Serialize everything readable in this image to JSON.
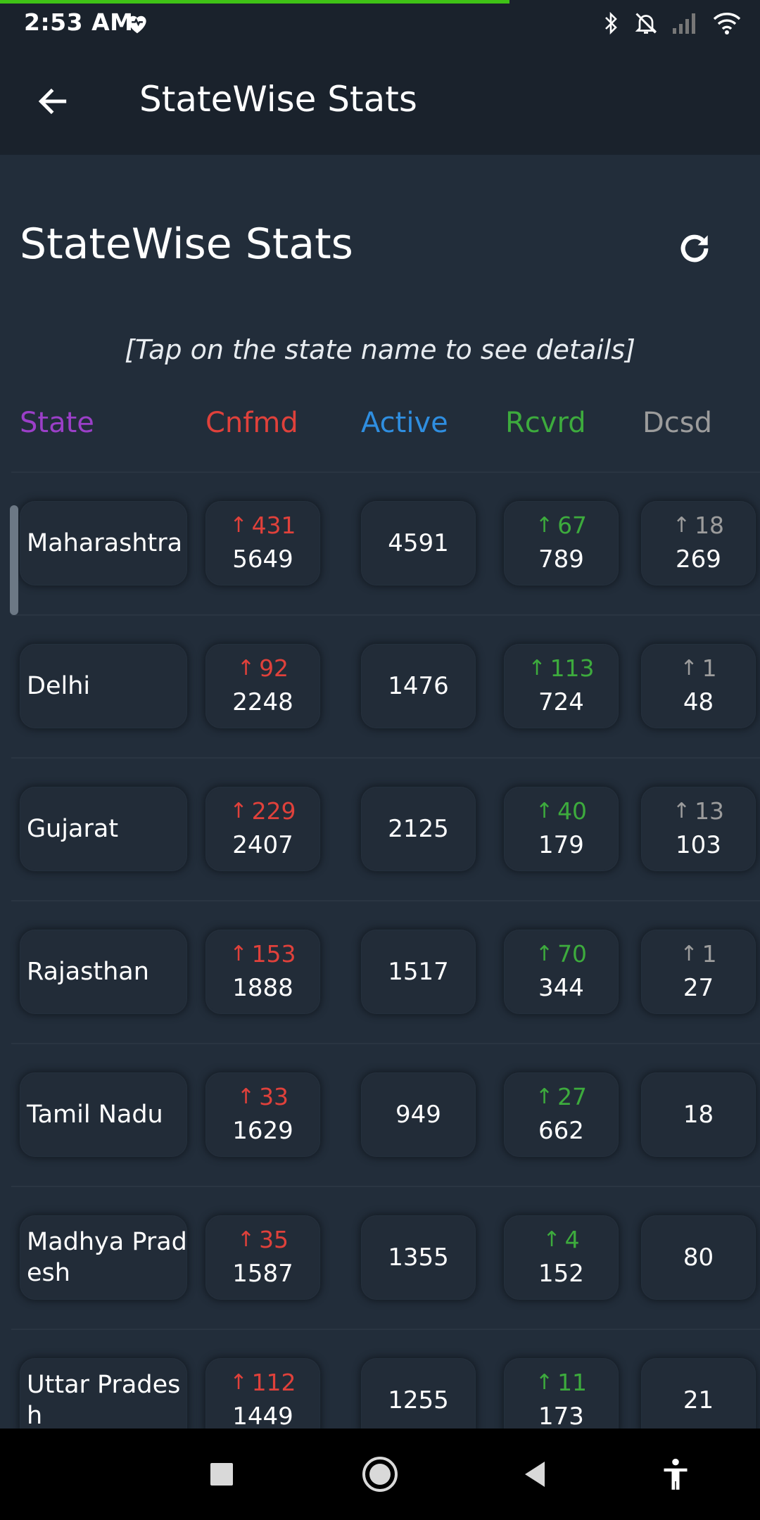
{
  "status_bar": {
    "time": "2:53 AM",
    "progress_fraction": 0.67,
    "icons": [
      "heart-icon",
      "bluetooth-icon",
      "mute-icon",
      "signal-icon",
      "wifi-icon"
    ]
  },
  "app_bar": {
    "title": "StateWise Stats",
    "back_icon": "arrow-left-icon"
  },
  "page": {
    "heading": "StateWise Stats",
    "refresh_icon": "refresh-icon",
    "hint": "[Tap on the state name to see details]"
  },
  "columns": {
    "state": "State",
    "confirmed": "Cnfmd",
    "active": "Active",
    "recovered": "Rcvrd",
    "deceased": "Dcsd"
  },
  "colors": {
    "state": "#9b3fc8",
    "confirmed": "#e0413b",
    "active": "#2f8ee0",
    "recovered": "#3dab3d",
    "deceased": "#9c9c9c"
  },
  "rows": [
    {
      "state": "Maharashtra",
      "confirmed_delta": "431",
      "confirmed": "5649",
      "active": "4591",
      "recovered_delta": "67",
      "recovered": "789",
      "deceased_delta": "18",
      "deceased": "269"
    },
    {
      "state": "Delhi",
      "confirmed_delta": "92",
      "confirmed": "2248",
      "active": "1476",
      "recovered_delta": "113",
      "recovered": "724",
      "deceased_delta": "1",
      "deceased": "48"
    },
    {
      "state": "Gujarat",
      "confirmed_delta": "229",
      "confirmed": "2407",
      "active": "2125",
      "recovered_delta": "40",
      "recovered": "179",
      "deceased_delta": "13",
      "deceased": "103"
    },
    {
      "state": "Rajasthan",
      "confirmed_delta": "153",
      "confirmed": "1888",
      "active": "1517",
      "recovered_delta": "70",
      "recovered": "344",
      "deceased_delta": "1",
      "deceased": "27"
    },
    {
      "state": "Tamil Nadu",
      "confirmed_delta": "33",
      "confirmed": "1629",
      "active": "949",
      "recovered_delta": "27",
      "recovered": "662",
      "deceased_delta": null,
      "deceased": "18"
    },
    {
      "state": "Madhya Pradesh",
      "confirmed_delta": "35",
      "confirmed": "1587",
      "active": "1355",
      "recovered_delta": "4",
      "recovered": "152",
      "deceased_delta": null,
      "deceased": "80"
    },
    {
      "state": "Uttar Pradesh",
      "confirmed_delta": "112",
      "confirmed": "1449",
      "active": "1255",
      "recovered_delta": "11",
      "recovered": "173",
      "deceased_delta": null,
      "deceased": "21"
    }
  ],
  "nav_bar": {
    "icons": [
      "recents-icon",
      "home-icon",
      "back-icon",
      "accessibility-icon"
    ]
  }
}
